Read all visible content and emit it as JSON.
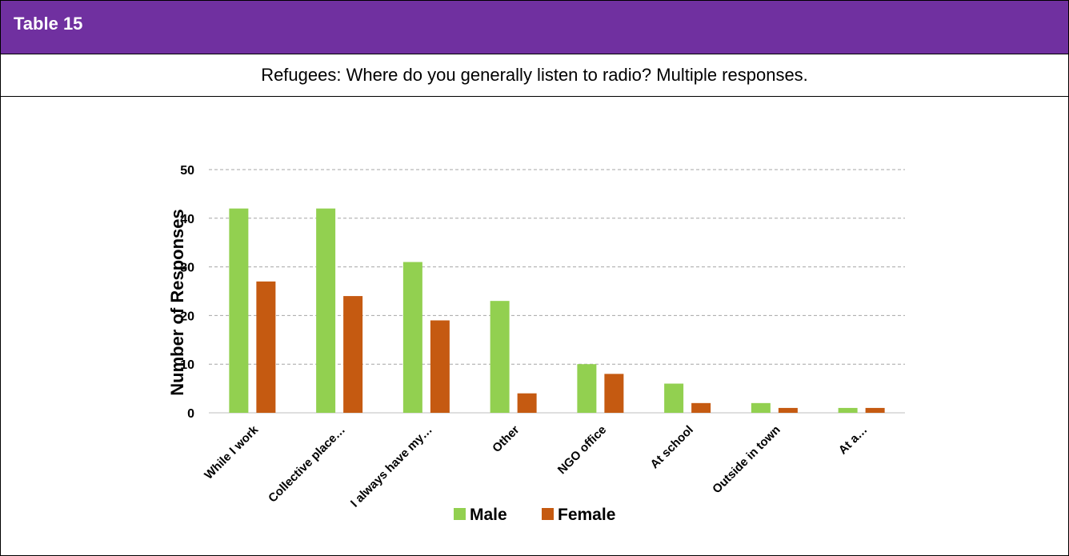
{
  "header": {
    "title": "Table 15"
  },
  "caption": "Refugees: Where do you generally listen to radio?  Multiple responses.",
  "colors": {
    "header_bg": "#7030a0",
    "male": "#92d050",
    "female": "#c55a11",
    "grid": "#a6a6a6"
  },
  "chart_data": {
    "type": "bar",
    "title": "",
    "xlabel": "",
    "ylabel": "Number of Responses",
    "ylim": [
      0,
      50
    ],
    "yticks": [
      "0",
      "10",
      "20",
      "30",
      "40",
      "50"
    ],
    "grid": true,
    "legend_position": "bottom",
    "categories": [
      "While I work",
      "Collective place…",
      "I always have my…",
      "Other",
      "NGO office",
      "At school",
      "Outside in town",
      "At a…"
    ],
    "series": [
      {
        "name": "Male",
        "values": [
          42,
          42,
          31,
          23,
          10,
          6,
          2,
          1
        ]
      },
      {
        "name": "Female",
        "values": [
          27,
          24,
          19,
          4,
          8,
          2,
          1,
          1
        ]
      }
    ]
  }
}
